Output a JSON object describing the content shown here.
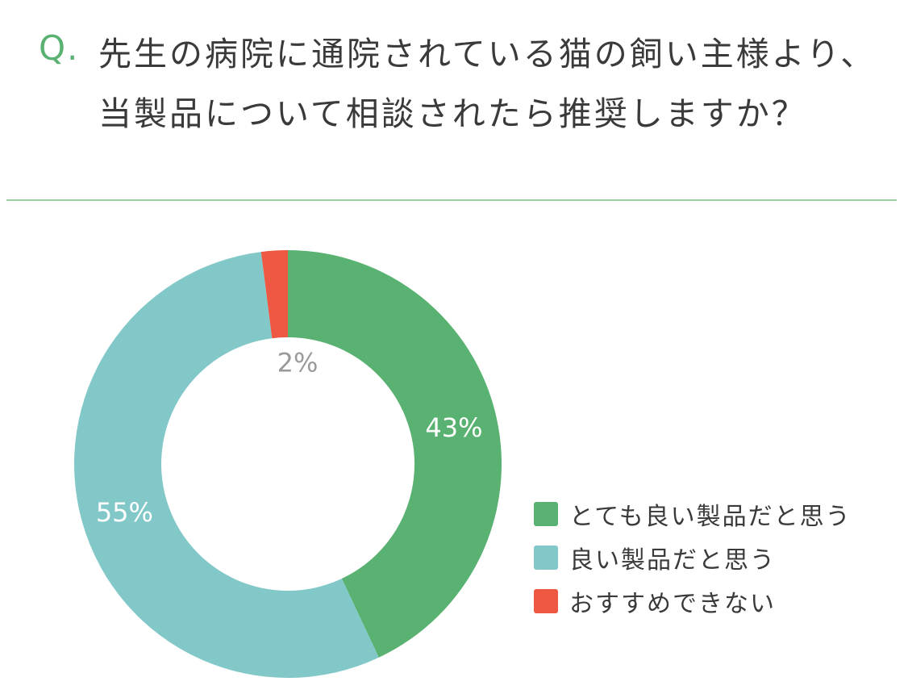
{
  "question": {
    "mark": "Q.",
    "text": "先生の病院に通院されている猫の飼い主様より、当製品について相談されたら推奨しますか？"
  },
  "chart_data": {
    "type": "pie",
    "style": "donut",
    "slices": [
      {
        "label": "とても良い製品だと思う",
        "value": 43,
        "value_label": "43%",
        "color": "#5ab272",
        "label_color": "#ffffff"
      },
      {
        "label": "良い製品だと思う",
        "value": 55,
        "value_label": "55%",
        "color": "#82c8c9",
        "label_color": "#ffffff"
      },
      {
        "label": "おすすめできない",
        "value": 2,
        "value_label": "2%",
        "color": "#ee5843",
        "label_color": "#9a9a9a"
      }
    ],
    "legend_placement": "right"
  }
}
